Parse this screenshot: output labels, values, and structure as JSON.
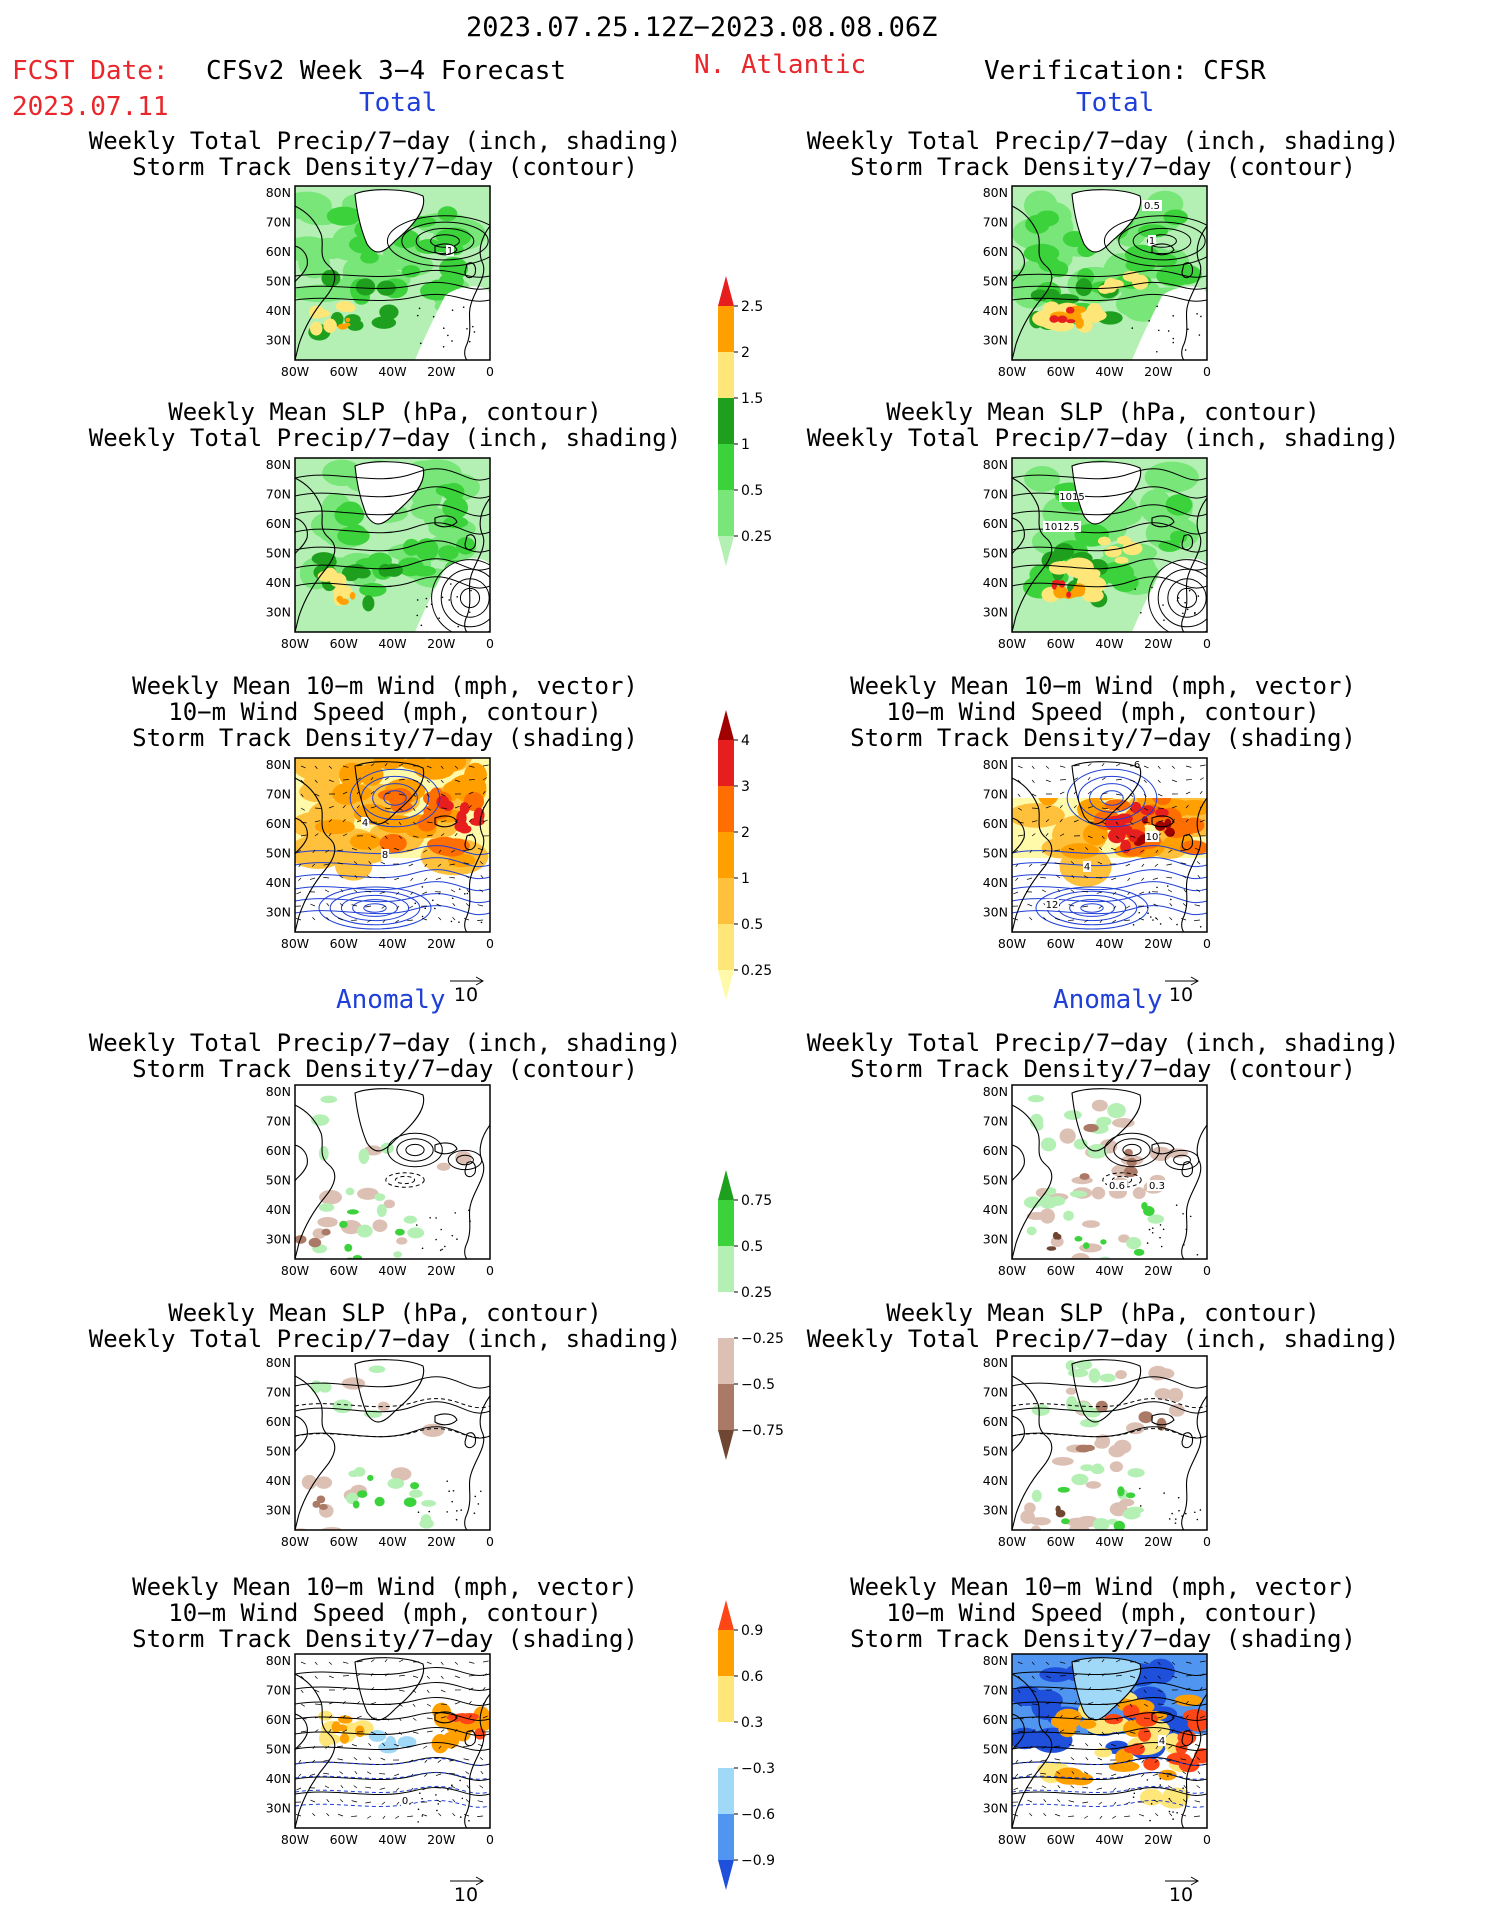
{
  "header": {
    "date_range": "2023.07.25.12Z−2023.08.08.06Z",
    "fcst_label": "FCST Date:",
    "fcst_date": "2023.07.11",
    "model_label": "CFSv2 Week 3−4 Forecast",
    "region": "N. Atlantic",
    "verification_label": "Verification: CFSR",
    "col_left_total": "Total",
    "col_right_total": "Total",
    "col_left_anom": "Anomaly",
    "col_right_anom": "Anomaly"
  },
  "titles": {
    "precip_storm": [
      "Weekly Total Precip/7−day (inch, shading)",
      "Storm Track Density/7−day (contour)"
    ],
    "slp_precip": [
      "Weekly Mean SLP (hPa, contour)",
      "Weekly Total Precip/7−day (inch, shading)"
    ],
    "wind": [
      "Weekly Mean 10−m Wind (mph, vector)",
      "10−m Wind Speed (mph, contour)",
      "Storm Track Density/7−day (shading)"
    ]
  },
  "axes": {
    "lat_ticks": [
      "80N",
      "70N",
      "60N",
      "50N",
      "40N",
      "30N"
    ],
    "lon_ticks": [
      "80W",
      "60W",
      "40W",
      "20W",
      "0"
    ]
  },
  "vector_ref": "10",
  "contour_labels": {
    "r1c2_a": "0.5",
    "r1c2_b": "1",
    "r1c1": "1",
    "r2c2_a": "1015",
    "r2c2_b": "1012.5",
    "r3c1_a": "4",
    "r3c1_b": "8",
    "r3c2_a": "10",
    "r3c2_b": "4",
    "r3c2_c": "12",
    "r3c2_d": "6",
    "r4c2_a": "0.6",
    "r4c2_b": "0.3",
    "r6c1": "0",
    "r6c2": "4"
  },
  "chart_data": [
    {
      "type": "heatmap",
      "name": "colorbar-precip-total",
      "levels": [
        "0.25",
        "0.5",
        "1",
        "1.5",
        "2",
        "2.5"
      ],
      "colors": [
        "#b4f0b4",
        "#78e678",
        "#3cd23c",
        "#1ea01e",
        "#ffe678",
        "#ffa000",
        "#e61e1e"
      ]
    },
    {
      "type": "heatmap",
      "name": "colorbar-storm-total",
      "levels": [
        "0.25",
        "0.5",
        "1",
        "2",
        "3",
        "4"
      ],
      "colors": [
        "#fffaaa",
        "#ffe678",
        "#ffc03c",
        "#ffa000",
        "#ff6e00",
        "#e61e1e",
        "#a00000"
      ]
    },
    {
      "type": "heatmap",
      "name": "colorbar-precip-anom",
      "levels": [
        "−0.75",
        "−0.5",
        "−0.25",
        "0.25",
        "0.5",
        "0.75"
      ],
      "colors": [
        "#6e4632",
        "#aa7a66",
        "#dcc0b4",
        "#ffffff",
        "#b4f0b4",
        "#3cd23c",
        "#1ea01e"
      ]
    },
    {
      "type": "heatmap",
      "name": "colorbar-storm-anom",
      "levels": [
        "−0.9",
        "−0.6",
        "−0.3",
        "0.3",
        "0.6",
        "0.9"
      ],
      "colors": [
        "#1e50dc",
        "#5096f0",
        "#a0d8f8",
        "#ffffff",
        "#ffe678",
        "#ffa000",
        "#ff4616"
      ]
    }
  ]
}
